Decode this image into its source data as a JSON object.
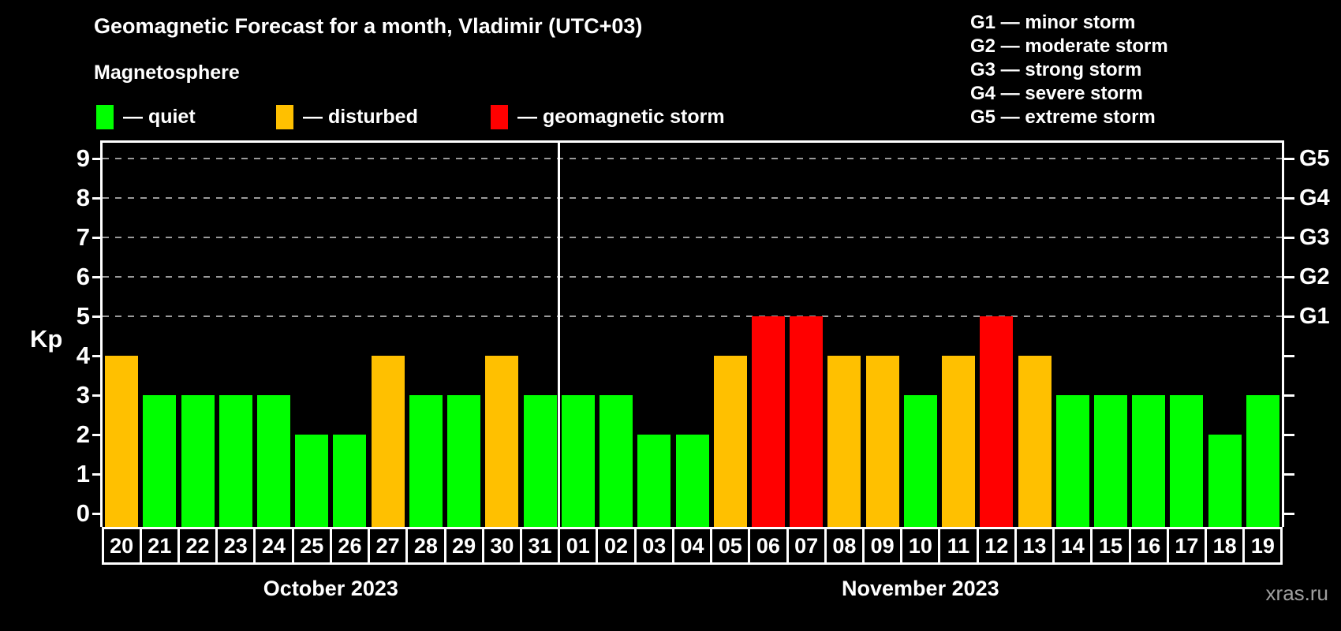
{
  "title": "Geomagnetic Forecast for a month, Vladimir (UTC+03)",
  "subtitle": "Magnetosphere",
  "legend": [
    {
      "status": "quiet",
      "label": "— quiet"
    },
    {
      "status": "disturbed",
      "label": "— disturbed"
    },
    {
      "status": "storm",
      "label": "— geomagnetic storm"
    }
  ],
  "g_legend": [
    "G1 — minor storm",
    "G2 — moderate storm",
    "G3 — strong storm",
    "G4 — severe storm",
    "G5 — extreme storm"
  ],
  "watermark": "xras.ru",
  "colors": {
    "quiet": "#00ff00",
    "disturbed": "#ffc000",
    "storm": "#ff0000",
    "grid": "#9a9a9a",
    "axis": "#ffffff",
    "background": "#000000",
    "watermark": "#a0a0a0"
  },
  "chart_data": {
    "type": "bar",
    "title": "Geomagnetic Forecast for a month, Vladimir (UTC+03)",
    "ylabel": "Kp",
    "ylim": [
      0,
      9
    ],
    "yticks": [
      0,
      1,
      2,
      3,
      4,
      5,
      6,
      7,
      8,
      9
    ],
    "grid_levels": [
      5,
      6,
      7,
      8,
      9
    ],
    "right_axis_labels": [
      {
        "level": 5,
        "label": "G1"
      },
      {
        "level": 6,
        "label": "G2"
      },
      {
        "level": 7,
        "label": "G3"
      },
      {
        "level": 8,
        "label": "G4"
      },
      {
        "level": 9,
        "label": "G5"
      }
    ],
    "months": [
      {
        "label": "October 2023",
        "days": 12
      },
      {
        "label": "November 2023",
        "days": 19
      }
    ],
    "bars": [
      {
        "day": "20",
        "month": "October 2023",
        "kp": 4,
        "status": "disturbed"
      },
      {
        "day": "21",
        "month": "October 2023",
        "kp": 3,
        "status": "quiet"
      },
      {
        "day": "22",
        "month": "October 2023",
        "kp": 3,
        "status": "quiet"
      },
      {
        "day": "23",
        "month": "October 2023",
        "kp": 3,
        "status": "quiet"
      },
      {
        "day": "24",
        "month": "October 2023",
        "kp": 3,
        "status": "quiet"
      },
      {
        "day": "25",
        "month": "October 2023",
        "kp": 2,
        "status": "quiet"
      },
      {
        "day": "26",
        "month": "October 2023",
        "kp": 2,
        "status": "quiet"
      },
      {
        "day": "27",
        "month": "October 2023",
        "kp": 4,
        "status": "disturbed"
      },
      {
        "day": "28",
        "month": "October 2023",
        "kp": 3,
        "status": "quiet"
      },
      {
        "day": "29",
        "month": "October 2023",
        "kp": 3,
        "status": "quiet"
      },
      {
        "day": "30",
        "month": "October 2023",
        "kp": 4,
        "status": "disturbed"
      },
      {
        "day": "31",
        "month": "October 2023",
        "kp": 3,
        "status": "quiet"
      },
      {
        "day": "01",
        "month": "November 2023",
        "kp": 3,
        "status": "quiet"
      },
      {
        "day": "02",
        "month": "November 2023",
        "kp": 3,
        "status": "quiet"
      },
      {
        "day": "03",
        "month": "November 2023",
        "kp": 2,
        "status": "quiet"
      },
      {
        "day": "04",
        "month": "November 2023",
        "kp": 2,
        "status": "quiet"
      },
      {
        "day": "05",
        "month": "November 2023",
        "kp": 4,
        "status": "disturbed"
      },
      {
        "day": "06",
        "month": "November 2023",
        "kp": 5,
        "status": "storm"
      },
      {
        "day": "07",
        "month": "November 2023",
        "kp": 5,
        "status": "storm"
      },
      {
        "day": "08",
        "month": "November 2023",
        "kp": 4,
        "status": "disturbed"
      },
      {
        "day": "09",
        "month": "November 2023",
        "kp": 4,
        "status": "disturbed"
      },
      {
        "day": "10",
        "month": "November 2023",
        "kp": 3,
        "status": "quiet"
      },
      {
        "day": "11",
        "month": "November 2023",
        "kp": 4,
        "status": "disturbed"
      },
      {
        "day": "12",
        "month": "November 2023",
        "kp": 5,
        "status": "storm"
      },
      {
        "day": "13",
        "month": "November 2023",
        "kp": 4,
        "status": "disturbed"
      },
      {
        "day": "14",
        "month": "November 2023",
        "kp": 3,
        "status": "quiet"
      },
      {
        "day": "15",
        "month": "November 2023",
        "kp": 3,
        "status": "quiet"
      },
      {
        "day": "16",
        "month": "November 2023",
        "kp": 3,
        "status": "quiet"
      },
      {
        "day": "17",
        "month": "November 2023",
        "kp": 3,
        "status": "quiet"
      },
      {
        "day": "18",
        "month": "November 2023",
        "kp": 2,
        "status": "quiet"
      },
      {
        "day": "19",
        "month": "November 2023",
        "kp": 3,
        "status": "quiet"
      }
    ]
  }
}
